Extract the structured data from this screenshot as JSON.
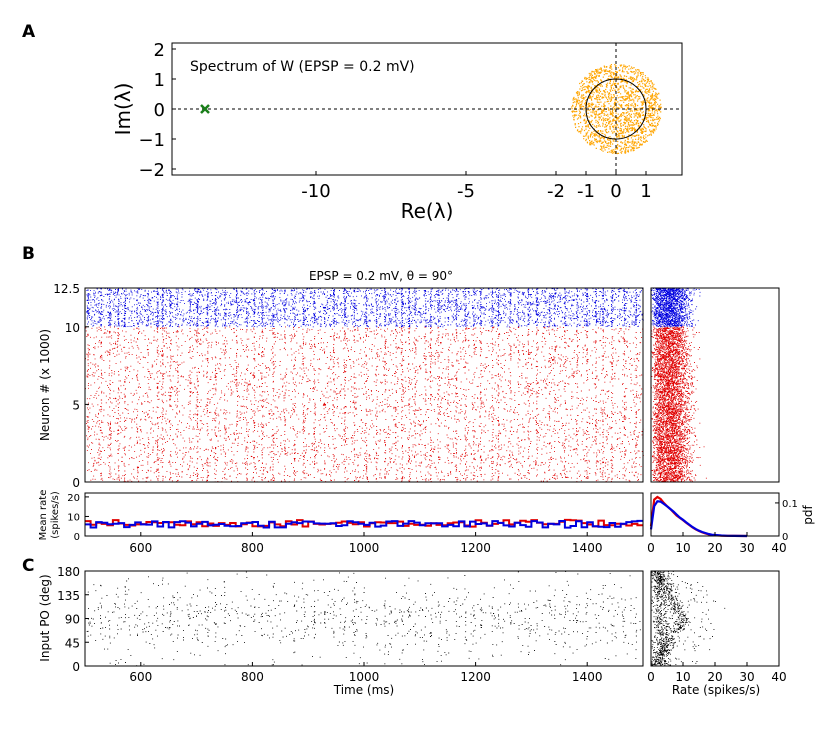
{
  "chart_data": [
    {
      "panel": "A",
      "type": "scatter",
      "title": "Spectrum of W (EPSP = 0.2 mV)",
      "xlabel": "Re(λ)",
      "ylabel": "Im(λ)",
      "xlim": [
        -14.8,
        2.2
      ],
      "ylim": [
        -2.2,
        2.2
      ],
      "xticks": [
        -10,
        -5,
        -2,
        -1,
        0,
        1
      ],
      "yticks": [
        2,
        1,
        0,
        -1,
        -2
      ],
      "series": [
        {
          "name": "bulk eigenvalues",
          "color": "#ffa500",
          "center": [
            0,
            0
          ],
          "radius": 1.5,
          "count": 1800
        },
        {
          "name": "unit circle",
          "color": "#000000",
          "radius": 1
        },
        {
          "name": "outlier eigenvalue",
          "color": "#1a7f1a",
          "marker": "x",
          "x": -13.7,
          "y": 0
        }
      ]
    },
    {
      "panel": "B-raster",
      "type": "scatter",
      "title": "EPSP = 0.2 mV, θ = 90°",
      "ylabel": "Neuron # (x 1000)",
      "xlim": [
        500,
        1500
      ],
      "ylim": [
        0,
        12.5
      ],
      "yticks": [
        0,
        5,
        10,
        12.5
      ],
      "ytick_labels": [
        "0",
        "5",
        "10",
        "12.5"
      ],
      "series": [
        {
          "name": "excitatory",
          "color": "#e00000",
          "y_range": [
            0,
            10
          ],
          "count": 14000
        },
        {
          "name": "inhibitory",
          "color": "#0000e0",
          "y_range": [
            10,
            12.5
          ],
          "count": 4500
        }
      ]
    },
    {
      "panel": "B-rate-scatter",
      "type": "scatter",
      "xlim": [
        0,
        40
      ],
      "ylim": [
        0,
        12.5
      ]
    },
    {
      "panel": "B-mean-rate",
      "type": "line",
      "ylabel": "Mean rate (spikes/s)",
      "xlim": [
        500,
        1500
      ],
      "ylim": [
        0,
        22
      ],
      "yticks": [
        0,
        10,
        20
      ],
      "xticks": [
        600,
        800,
        1000,
        1200,
        1400
      ],
      "series": [
        {
          "name": "excitatory",
          "color": "#e00000",
          "mean": 6.5
        },
        {
          "name": "inhibitory",
          "color": "#0000e0",
          "mean": 6.0
        }
      ]
    },
    {
      "panel": "B-rate-pdf",
      "type": "line",
      "ylabel": "pdf",
      "xlim": [
        0,
        40
      ],
      "ylim": [
        0,
        0.13
      ],
      "yticks": [
        0,
        0.1
      ],
      "ytick_labels": [
        "0",
        "0.1"
      ],
      "xticks": [
        0,
        10,
        20,
        30,
        40
      ],
      "series": [
        {
          "name": "excitatory",
          "color": "#e00000",
          "x": [
            0,
            1,
            2,
            3,
            4,
            5,
            6,
            7,
            8,
            9,
            10,
            11,
            12,
            13,
            14,
            15,
            16,
            17,
            18,
            19,
            20,
            22,
            24,
            26,
            30
          ],
          "y": [
            0.03,
            0.11,
            0.118,
            0.112,
            0.1,
            0.09,
            0.082,
            0.072,
            0.062,
            0.055,
            0.048,
            0.04,
            0.033,
            0.026,
            0.02,
            0.015,
            0.011,
            0.008,
            0.005,
            0.003,
            0.002,
            0.001,
            0.0005,
            0.0003,
            0.0001
          ]
        },
        {
          "name": "inhibitory",
          "color": "#0000e0",
          "x": [
            0,
            1,
            2,
            3,
            4,
            5,
            6,
            7,
            8,
            9,
            10,
            11,
            12,
            13,
            14,
            15,
            16,
            17,
            18,
            19,
            20,
            22,
            24,
            26,
            30
          ],
          "y": [
            0.02,
            0.09,
            0.105,
            0.104,
            0.097,
            0.09,
            0.082,
            0.074,
            0.065,
            0.056,
            0.049,
            0.041,
            0.034,
            0.027,
            0.021,
            0.016,
            0.012,
            0.009,
            0.006,
            0.004,
            0.003,
            0.0015,
            0.0007,
            0.0003,
            0.0001
          ]
        }
      ]
    },
    {
      "panel": "C-raster",
      "type": "scatter",
      "xlabel": "Time (ms)",
      "ylabel": "Input PO (deg)",
      "xlim": [
        500,
        1500
      ],
      "ylim": [
        0,
        180
      ],
      "yticks": [
        0,
        45,
        90,
        135,
        180
      ],
      "xticks": [
        600,
        800,
        1000,
        1200,
        1400
      ],
      "series": [
        {
          "name": "spikes",
          "color": "#000000",
          "count": 22000
        }
      ]
    },
    {
      "panel": "C-rate-scatter",
      "type": "scatter",
      "xlabel": "Rate (spikes/s)",
      "xlim": [
        0,
        40
      ],
      "ylim": [
        0,
        180
      ],
      "xticks": [
        0,
        10,
        20,
        30,
        40
      ],
      "series": [
        {
          "name": "neurons",
          "color": "#000000",
          "count": 5000
        }
      ]
    }
  ],
  "labels": {
    "panelA": "A",
    "panelB": "B",
    "panelC": "C"
  }
}
